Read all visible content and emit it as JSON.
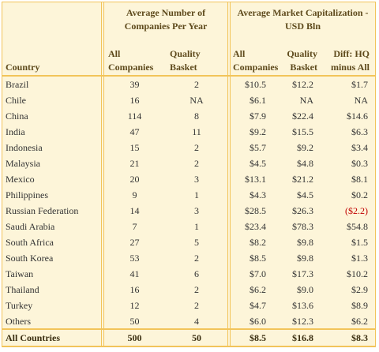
{
  "table": {
    "group_headers": [
      "Average Number of Companies Per Year",
      "Average Market Capitalization - USD Bln"
    ],
    "columns": [
      "Country",
      "All Companies",
      "Quality Basket",
      "All Companies",
      "Quality Basket",
      "Diff: HQ minus All"
    ],
    "rows": [
      [
        "Brazil",
        "39",
        "2",
        "$10.5",
        "$12.2",
        "$1.7"
      ],
      [
        "Chile",
        "16",
        "NA",
        "$6.1",
        "NA",
        "NA"
      ],
      [
        "China",
        "114",
        "8",
        "$7.9",
        "$22.4",
        "$14.6"
      ],
      [
        "India",
        "47",
        "11",
        "$9.2",
        "$15.5",
        "$6.3"
      ],
      [
        "Indonesia",
        "15",
        "2",
        "$5.7",
        "$9.2",
        "$3.4"
      ],
      [
        "Malaysia",
        "21",
        "2",
        "$4.5",
        "$4.8",
        "$0.3"
      ],
      [
        "Mexico",
        "20",
        "3",
        "$13.1",
        "$21.2",
        "$8.1"
      ],
      [
        "Philippines",
        "9",
        "1",
        "$4.3",
        "$4.5",
        "$0.2"
      ],
      [
        "Russian Federation",
        "14",
        "3",
        "$28.5",
        "$26.3",
        "($2.2)"
      ],
      [
        "Saudi Arabia",
        "7",
        "1",
        "$23.4",
        "$78.3",
        "$54.8"
      ],
      [
        "South Africa",
        "27",
        "5",
        "$8.2",
        "$9.8",
        "$1.5"
      ],
      [
        "South Korea",
        "53",
        "2",
        "$8.5",
        "$9.8",
        "$1.3"
      ],
      [
        "Taiwan",
        "41",
        "6",
        "$7.0",
        "$17.3",
        "$10.2"
      ],
      [
        "Thailand",
        "16",
        "2",
        "$6.2",
        "$9.0",
        "$2.9"
      ],
      [
        "Turkey",
        "12",
        "2",
        "$4.7",
        "$13.6",
        "$8.9"
      ],
      [
        "Others",
        "50",
        "4",
        "$6.0",
        "$12.3",
        "$6.2"
      ]
    ],
    "total": [
      "All Countries",
      "500",
      "50",
      "$8.5",
      "$16.8",
      "$8.3"
    ]
  }
}
